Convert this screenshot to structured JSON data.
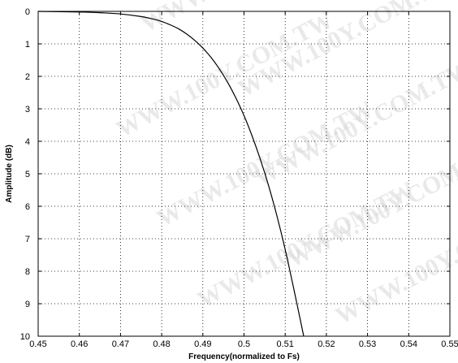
{
  "chart_data": {
    "type": "line",
    "title": "",
    "xlabel": "Frequency(normalized to Fs)",
    "ylabel": "Amplitude (dB)",
    "xlim": [
      0.45,
      0.55
    ],
    "ylim": [
      0,
      10
    ],
    "y_inverted": true,
    "grid": true,
    "grid_style": "dotted",
    "x_ticks": [
      0.45,
      0.46,
      0.47,
      0.48,
      0.49,
      0.5,
      0.51,
      0.52,
      0.53,
      0.54,
      0.55
    ],
    "x_tick_labels": [
      "0.45",
      "0.46",
      "0.47",
      "0.48",
      "0.49",
      "0.5",
      "0.51",
      "0.52",
      "0.53",
      "0.54",
      "0.55"
    ],
    "y_ticks": [
      0,
      1,
      2,
      3,
      4,
      5,
      6,
      7,
      8,
      9,
      10
    ],
    "y_tick_labels": [
      "0",
      "1",
      "2",
      "3",
      "4",
      "5",
      "6",
      "7",
      "8",
      "9",
      "10"
    ],
    "line_color": "#000000",
    "series": [
      {
        "x": [
          0.45,
          0.46,
          0.465,
          0.47,
          0.475,
          0.478,
          0.48,
          0.482,
          0.484,
          0.486,
          0.488,
          0.49,
          0.492,
          0.494,
          0.496,
          0.498,
          0.5,
          0.502,
          0.504,
          0.506,
          0.508,
          0.51,
          0.512,
          0.5145
        ],
        "values": [
          0.0,
          0.02,
          0.04,
          0.08,
          0.16,
          0.24,
          0.31,
          0.41,
          0.53,
          0.69,
          0.89,
          1.13,
          1.42,
          1.77,
          2.18,
          2.66,
          3.21,
          3.85,
          4.57,
          5.38,
          6.3,
          7.33,
          8.49,
          10.0
        ]
      }
    ]
  },
  "watermark": {
    "text": "WWW.100Y.COM.TW",
    "color": "#d8d8d8"
  }
}
